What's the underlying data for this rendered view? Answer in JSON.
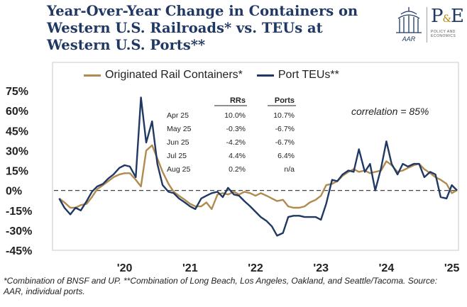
{
  "title": "Year-Over-Year Change in Containers on Western U.S. Railroads* vs. TEUs at Western U.S. Ports**",
  "logo": {
    "aar_text": "AAR",
    "pe_text": "P",
    "pe_amp": "&",
    "pe_text2": "E",
    "sub_text": "POLICY AND ECONOMICS"
  },
  "footnote": "*Combination of BNSF and UP. **Combination of Long Beach, Los Angeles, Oakland, and Seattle/Tacoma. Source: AAR, individual ports.",
  "colors": {
    "rail": "#b08a4e",
    "port": "#1f3864",
    "title": "#1f3864"
  },
  "chart_data": {
    "type": "line",
    "title": "Year-Over-Year Change in Containers on Western U.S. Railroads* vs. TEUs at Western U.S. Ports**",
    "xlabel": "",
    "ylabel": "",
    "ylim": [
      -45,
      75
    ],
    "xlim": [
      2019.42,
      2025.58
    ],
    "yticks": [
      75,
      60,
      45,
      30,
      15,
      0,
      -15,
      -30,
      -45
    ],
    "ytick_labels": [
      "75%",
      "60%",
      "45%",
      "30%",
      "15%",
      "0%",
      "-15%",
      "-30%",
      "-45%"
    ],
    "xticks": [
      2020,
      2021,
      2022,
      2023,
      2024,
      2025
    ],
    "xtick_labels": [
      "'20",
      "'21",
      "'22",
      "'23",
      "'24",
      "'25"
    ],
    "zero_line": "dashed",
    "legend": "top",
    "annotation": "correlation = 85%",
    "series": [
      {
        "name": "Originated Rail Containers*",
        "color": "#b08a4e",
        "x": [
          2019.5,
          2019.58,
          2019.67,
          2019.75,
          2019.83,
          2019.92,
          2020.0,
          2020.08,
          2020.17,
          2020.25,
          2020.33,
          2020.42,
          2020.5,
          2020.58,
          2020.67,
          2020.75,
          2020.83,
          2020.92,
          2021.0,
          2021.08,
          2021.17,
          2021.25,
          2021.33,
          2021.42,
          2021.5,
          2021.58,
          2021.67,
          2021.75,
          2021.83,
          2021.92,
          2022.0,
          2022.08,
          2022.17,
          2022.25,
          2022.33,
          2022.42,
          2022.5,
          2022.58,
          2022.67,
          2022.75,
          2022.83,
          2022.92,
          2023.0,
          2023.08,
          2023.17,
          2023.25,
          2023.33,
          2023.42,
          2023.5,
          2023.58,
          2023.67,
          2023.75,
          2023.83,
          2023.92,
          2024.0,
          2024.08,
          2024.17,
          2024.25,
          2024.33,
          2024.42,
          2024.5,
          2024.58,
          2024.67,
          2024.75,
          2024.83,
          2024.92,
          2025.0,
          2025.08,
          2025.17,
          2025.25,
          2025.33,
          2025.42,
          2025.5,
          2025.58
        ],
        "values": [
          -6,
          -9,
          -13,
          -13,
          -11,
          -10,
          -5,
          1,
          4,
          7,
          10,
          12,
          13,
          13,
          8,
          3,
          30,
          34,
          24,
          14,
          5,
          -1,
          -4,
          -7,
          -10,
          -12,
          -12,
          -9,
          -14,
          -3,
          -2,
          -3,
          -1,
          -3,
          -1,
          -2,
          -4,
          -2,
          -4,
          -6,
          -8,
          -7,
          -12,
          -13,
          -13,
          -12,
          -9,
          -7,
          -4,
          4,
          5,
          7,
          11,
          14,
          16,
          14,
          15,
          13,
          14,
          15,
          22,
          19,
          14,
          15,
          17,
          19,
          20,
          16,
          13,
          10,
          8,
          5,
          -2,
          0.2
        ],
        "label_end": "0.2"
      },
      {
        "name": "Port TEUs**",
        "color": "#1f3864",
        "x": [
          2019.5,
          2019.58,
          2019.67,
          2019.75,
          2019.83,
          2019.92,
          2020.0,
          2020.08,
          2020.17,
          2020.25,
          2020.33,
          2020.42,
          2020.5,
          2020.58,
          2020.67,
          2020.75,
          2020.83,
          2020.92,
          2021.0,
          2021.08,
          2021.17,
          2021.25,
          2021.33,
          2021.42,
          2021.5,
          2021.58,
          2021.67,
          2021.75,
          2021.83,
          2021.92,
          2022.0,
          2022.08,
          2022.17,
          2022.25,
          2022.33,
          2022.42,
          2022.5,
          2022.58,
          2022.67,
          2022.75,
          2022.83,
          2022.92,
          2023.0,
          2023.08,
          2023.17,
          2023.25,
          2023.33,
          2023.42,
          2023.5,
          2023.58,
          2023.67,
          2023.75,
          2023.83,
          2023.92,
          2024.0,
          2024.08,
          2024.17,
          2024.25,
          2024.33,
          2024.42,
          2024.5,
          2024.58,
          2024.67,
          2024.75,
          2024.83,
          2024.92,
          2025.0,
          2025.08,
          2025.17,
          2025.25,
          2025.33,
          2025.42,
          2025.5,
          2025.58
        ],
        "values": [
          -6,
          -13,
          -18,
          -13,
          -15,
          -8,
          -1,
          3,
          5,
          9,
          12,
          17,
          19,
          18,
          10,
          70,
          36,
          52,
          20,
          4,
          -1,
          -2,
          -6,
          -9,
          -12,
          -14,
          -6,
          -4,
          -2,
          -1,
          -5,
          2,
          -3,
          -4,
          -8,
          -12,
          -16,
          -20,
          -23,
          -27,
          -34,
          -32,
          -20,
          -19,
          -19,
          -20,
          -20,
          -20,
          -22,
          -10,
          8,
          7,
          12,
          15,
          14,
          31,
          14,
          20,
          0,
          17,
          37,
          20,
          12,
          20,
          18,
          20,
          20,
          10,
          14,
          12,
          -5,
          -6,
          4,
          0
        ]
      }
    ],
    "table": {
      "headers": [
        "",
        "RRs",
        "Ports"
      ],
      "rows": [
        [
          "Apr 25",
          "10.0%",
          "10.7%"
        ],
        [
          "May 25",
          "-0.3%",
          "-6.7%"
        ],
        [
          "Jun 25",
          "-4.2%",
          "-6.7%"
        ],
        [
          "Jul 25",
          "4.4%",
          "6.4%"
        ],
        [
          "Aug 25",
          "0.2%",
          "n/a"
        ]
      ]
    }
  }
}
